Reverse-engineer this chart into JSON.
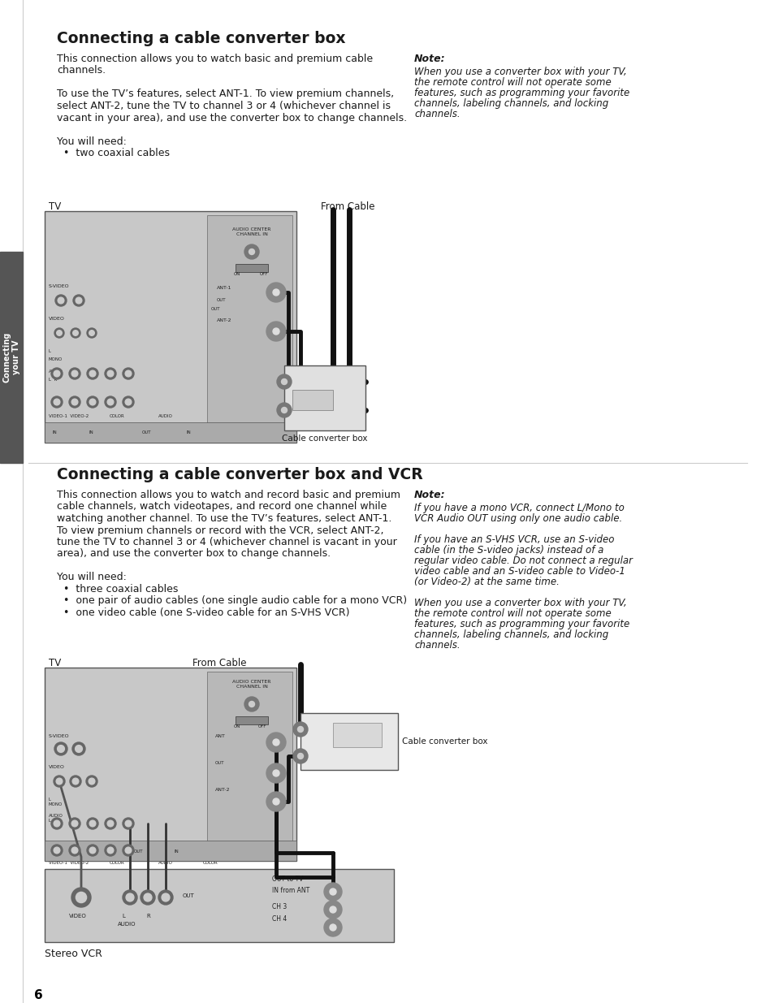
{
  "bg_color": "#ffffff",
  "sidebar_color": "#555555",
  "page_number": "6",
  "title1": "Connecting a cable converter box",
  "title2": "Connecting a cable converter box and VCR",
  "body1_lines": [
    "This connection allows you to watch basic and premium cable",
    "channels.",
    "",
    "To use the TV’s features, select ANT-1. To view premium channels,",
    "select ANT-2, tune the TV to channel 3 or 4 (whichever channel is",
    "vacant in your area), and use the converter box to change channels.",
    "",
    "You will need:",
    "  •  two coaxial cables"
  ],
  "note1_title": "Note:",
  "note1_lines": [
    "When you use a converter box with your TV,",
    "the remote control will not operate some",
    "features, such as programming your favorite",
    "channels, labeling channels, and locking",
    "channels."
  ],
  "tv_label1": "TV",
  "from_cable_label1": "From Cable",
  "cable_box_label1": "Cable converter box",
  "body2_lines": [
    "This connection allows you to watch and record basic and premium",
    "cable channels, watch videotapes, and record one channel while",
    "watching another channel. To use the TV’s features, select ANT-1.",
    "To view premium channels or record with the VCR, select ANT-2,",
    "tune the TV to channel 3 or 4 (whichever channel is vacant in your",
    "area), and use the converter box to change channels.",
    "",
    "You will need:",
    "  •  three coaxial cables",
    "  •  one pair of audio cables (one single audio cable for a mono VCR)",
    "  •  one video cable (one S-video cable for an S-VHS VCR)"
  ],
  "note2_title": "Note:",
  "note2_lines": [
    "If you have a mono VCR, connect L/Mono to",
    "VCR Audio OUT using only one audio cable.",
    "",
    "If you have an S-VHS VCR, use an S-video",
    "cable (in the S-video jacks) instead of a",
    "regular video cable. Do not connect a regular",
    "video cable and an S-video cable to Video-1",
    "(or Video-2) at the same time.",
    "",
    "When you use a converter box with your TV,",
    "the remote control will not operate some",
    "features, such as programming your favorite",
    "channels, labeling channels, and locking",
    "channels."
  ],
  "tv_label2": "TV",
  "from_cable_label2": "From Cable",
  "cable_box_label2": "Cable converter box",
  "stereo_vcr_label": "Stereo VCR"
}
